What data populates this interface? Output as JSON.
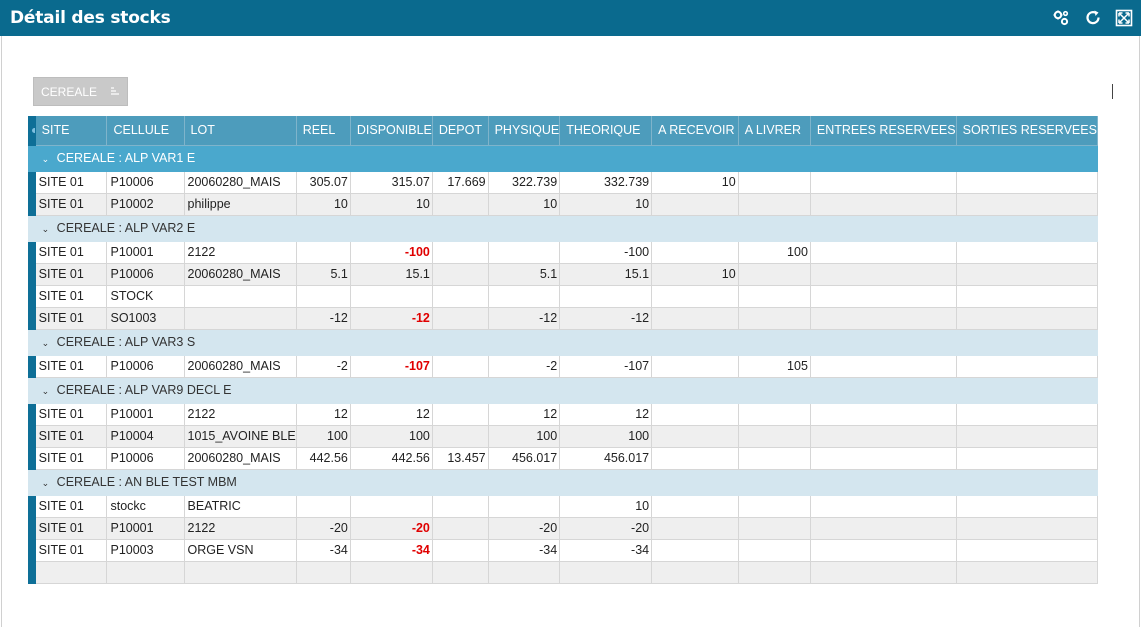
{
  "window": {
    "title": "Détail des stocks",
    "icons": [
      "settings-cogs-icon",
      "refresh-icon",
      "fullscreen-icon"
    ]
  },
  "group_chip": {
    "label": "CEREALE",
    "icon": "sort-icon"
  },
  "grid": {
    "columns": [
      "SITE",
      "CELLULE",
      "LOT",
      "REEL",
      "DISPONIBLE",
      "DEPOT",
      "PHYSIQUE",
      "THEORIQUE",
      "A RECEVOIR",
      "A LIVRER",
      "ENTREES RESERVEES",
      "SORTIES RESERVEES"
    ],
    "groups": [
      {
        "label": "CEREALE : ALP VAR1 E",
        "expanded": true,
        "rows": [
          [
            "SITE 01",
            "P10006",
            "20060280_MAIS",
            "305.07",
            "315.07",
            "17.669",
            "322.739",
            "332.739",
            "10",
            "",
            "",
            ""
          ],
          [
            "SITE 01",
            "P10002",
            "philippe",
            "10",
            "10",
            "",
            "10",
            "10",
            "",
            "",
            "",
            ""
          ]
        ]
      },
      {
        "label": "CEREALE : ALP VAR2 E",
        "expanded": true,
        "rows": [
          [
            "SITE 01",
            "P10001",
            "2122",
            "",
            "-100",
            "",
            "",
            "-100",
            "",
            "100",
            "",
            ""
          ],
          [
            "SITE 01",
            "P10006",
            "20060280_MAIS",
            "5.1",
            "15.1",
            "",
            "5.1",
            "15.1",
            "10",
            "",
            "",
            ""
          ],
          [
            "SITE 01",
            "STOCK",
            "",
            "",
            "",
            "",
            "",
            "",
            "",
            "",
            "",
            ""
          ],
          [
            "SITE 01",
            "SO1003",
            "",
            "-12",
            "-12",
            "",
            "-12",
            "-12",
            "",
            "",
            "",
            ""
          ]
        ]
      },
      {
        "label": "CEREALE : ALP VAR3 S",
        "expanded": true,
        "rows": [
          [
            "SITE 01",
            "P10006",
            "20060280_MAIS",
            "-2",
            "-107",
            "",
            "-2",
            "-107",
            "",
            "105",
            "",
            ""
          ]
        ]
      },
      {
        "label": "CEREALE : ALP VAR9 DECL E",
        "expanded": true,
        "rows": [
          [
            "SITE 01",
            "P10001",
            "2122",
            "12",
            "12",
            "",
            "12",
            "12",
            "",
            "",
            "",
            ""
          ],
          [
            "SITE 01",
            "P10004",
            "1015_AVOINE BLE",
            "100",
            "100",
            "",
            "100",
            "100",
            "",
            "",
            "",
            ""
          ],
          [
            "SITE 01",
            "P10006",
            "20060280_MAIS",
            "442.56",
            "442.56",
            "13.457",
            "456.017",
            "456.017",
            "",
            "",
            "",
            ""
          ]
        ]
      },
      {
        "label": "CEREALE : AN BLE TEST MBM",
        "expanded": true,
        "rows": [
          [
            "SITE 01",
            "stockc",
            "BEATRIC",
            "",
            "",
            "",
            "",
            "10",
            "",
            "",
            "",
            ""
          ],
          [
            "SITE 01",
            "P10001",
            "2122",
            "-20",
            "-20",
            "",
            "-20",
            "-20",
            "",
            "",
            "",
            ""
          ],
          [
            "SITE 01",
            "P10003",
            "ORGE VSN",
            "-34",
            "-34",
            "",
            "-34",
            "-34",
            "",
            "",
            "",
            ""
          ],
          [
            "",
            "",
            "",
            "",
            "",
            "",
            "",
            "",
            "",
            "",
            "",
            ""
          ]
        ]
      }
    ],
    "numeric_columns": [
      3,
      4,
      5,
      6,
      7,
      8,
      9,
      10,
      11
    ],
    "negative_highlight_column": 4,
    "negative_color": "#e00000",
    "header_color": "#4d9cbc",
    "first_group_color": "#4aa8cd",
    "group_color": "#d4e6ef",
    "titlebar_color": "#0a6a8e"
  }
}
